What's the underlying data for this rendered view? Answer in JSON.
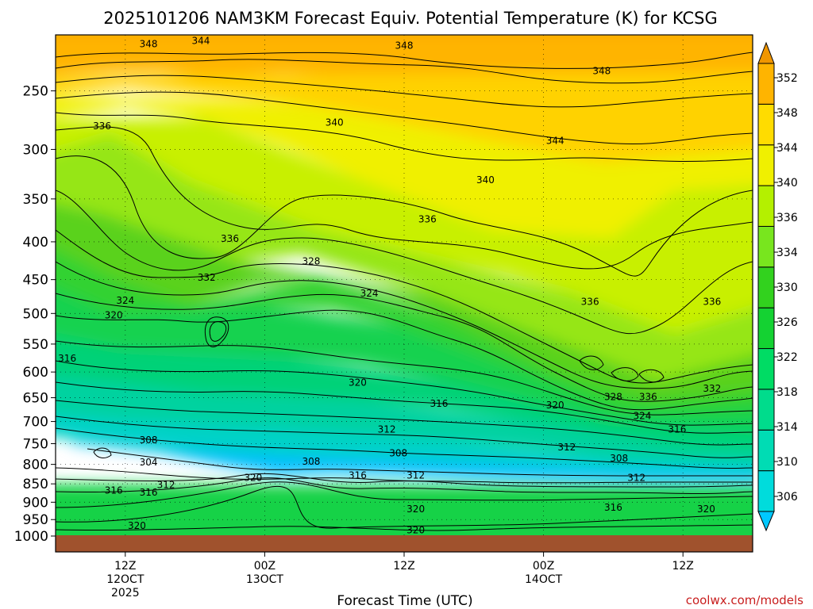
{
  "chart_data": {
    "type": "heatmap",
    "title": "2025101206 NAM3KM Forecast Equiv. Potential Temperature (K) for KCSG",
    "xlabel": "Forecast Time (UTC)",
    "ylabel": "",
    "y_axis": "pressure (hPa), inverted, log scale",
    "ylim": [
      1000,
      210
    ],
    "yticks": [
      250,
      300,
      350,
      400,
      450,
      500,
      550,
      600,
      650,
      700,
      750,
      800,
      850,
      900,
      950,
      1000
    ],
    "x_hours_range": [
      0,
      60
    ],
    "xticks": [
      {
        "hour": 6,
        "label": "12Z",
        "label2": "12OCT",
        "label3": "2025"
      },
      {
        "hour": 18,
        "label": "00Z",
        "label2": "13OCT",
        "label3": ""
      },
      {
        "hour": 30,
        "label": "12Z",
        "label2": "",
        "label3": ""
      },
      {
        "hour": 42,
        "label": "00Z",
        "label2": "14OCT",
        "label3": ""
      },
      {
        "hour": 54,
        "label": "12Z",
        "label2": "",
        "label3": ""
      }
    ],
    "colorbar_levels": [
      306,
      310,
      314,
      318,
      322,
      326,
      330,
      334,
      336,
      340,
      344,
      348,
      352
    ],
    "colorbar_colors": [
      "#00c8ff",
      "#00dcdc",
      "#00dcb4",
      "#00dc8c",
      "#00dc64",
      "#14d232",
      "#32d21e",
      "#78e61e",
      "#b4f000",
      "#f0f000",
      "#ffdc00",
      "#ffb400",
      "#f09600"
    ],
    "contour_labels": [
      {
        "value": "348",
        "hour": 8,
        "p": 216
      },
      {
        "value": "344",
        "hour": 12.5,
        "p": 214
      },
      {
        "value": "348",
        "hour": 30,
        "p": 217
      },
      {
        "value": "348",
        "hour": 47,
        "p": 235
      },
      {
        "value": "336",
        "hour": 4,
        "p": 279
      },
      {
        "value": "340",
        "hour": 24,
        "p": 276
      },
      {
        "value": "344",
        "hour": 43,
        "p": 292
      },
      {
        "value": "340",
        "hour": 37,
        "p": 330
      },
      {
        "value": "336",
        "hour": 32,
        "p": 373
      },
      {
        "value": "336",
        "hour": 15,
        "p": 396
      },
      {
        "value": "328",
        "hour": 22,
        "p": 425
      },
      {
        "value": "332",
        "hour": 13,
        "p": 447
      },
      {
        "value": "324",
        "hour": 6,
        "p": 480
      },
      {
        "value": "324",
        "hour": 27,
        "p": 470
      },
      {
        "value": "336",
        "hour": 46,
        "p": 482
      },
      {
        "value": "336",
        "hour": 56.5,
        "p": 482
      },
      {
        "value": "320",
        "hour": 5,
        "p": 503
      },
      {
        "value": "316",
        "hour": 1,
        "p": 575
      },
      {
        "value": "320",
        "hour": 26,
        "p": 620
      },
      {
        "value": "332",
        "hour": 56.5,
        "p": 632
      },
      {
        "value": "328",
        "hour": 48,
        "p": 648
      },
      {
        "value": "336",
        "hour": 51,
        "p": 648
      },
      {
        "value": "316",
        "hour": 33,
        "p": 662
      },
      {
        "value": "320",
        "hour": 43,
        "p": 665
      },
      {
        "value": "324",
        "hour": 50.5,
        "p": 688
      },
      {
        "value": "316",
        "hour": 53.5,
        "p": 717
      },
      {
        "value": "312",
        "hour": 28.5,
        "p": 717
      },
      {
        "value": "308",
        "hour": 8,
        "p": 742
      },
      {
        "value": "312",
        "hour": 44,
        "p": 758
      },
      {
        "value": "308",
        "hour": 29.5,
        "p": 773
      },
      {
        "value": "304",
        "hour": 8,
        "p": 795
      },
      {
        "value": "308",
        "hour": 22,
        "p": 793
      },
      {
        "value": "308",
        "hour": 48.5,
        "p": 785
      },
      {
        "value": "316",
        "hour": 26,
        "p": 828
      },
      {
        "value": "312",
        "hour": 31,
        "p": 828
      },
      {
        "value": "320",
        "hour": 17,
        "p": 834
      },
      {
        "value": "312",
        "hour": 50,
        "p": 834
      },
      {
        "value": "312",
        "hour": 9.5,
        "p": 853
      },
      {
        "value": "316",
        "hour": 5,
        "p": 868
      },
      {
        "value": "316",
        "hour": 8,
        "p": 873
      },
      {
        "value": "320",
        "hour": 31,
        "p": 920
      },
      {
        "value": "316",
        "hour": 48,
        "p": 915
      },
      {
        "value": "320",
        "hour": 56,
        "p": 920
      },
      {
        "value": "320",
        "hour": 7,
        "p": 968
      },
      {
        "value": "320",
        "hour": 31,
        "p": 982
      }
    ]
  },
  "credit": "coolwx.com/models"
}
